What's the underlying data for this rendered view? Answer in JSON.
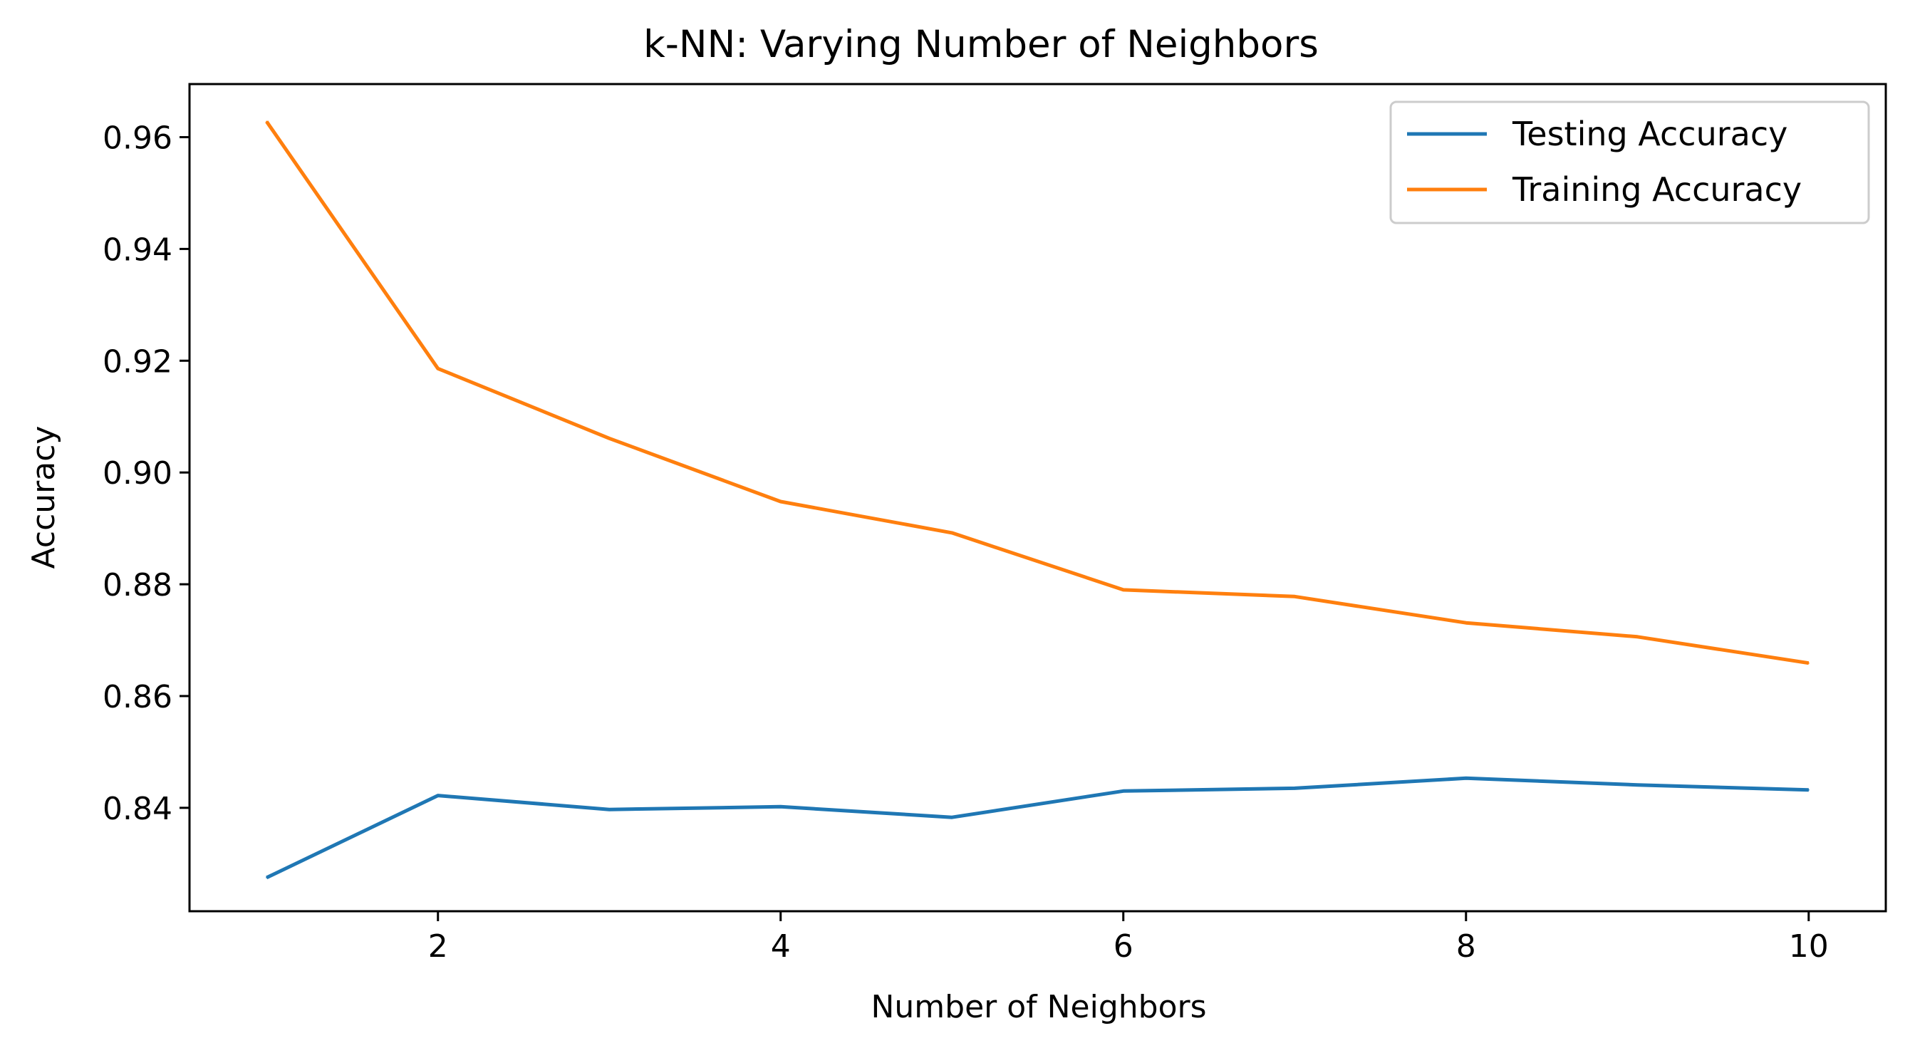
{
  "chart_data": {
    "type": "line",
    "title": "k-NN: Varying Number of Neighbors",
    "xlabel": "Number of Neighbors",
    "ylabel": "Accuracy",
    "x": [
      1,
      2,
      3,
      4,
      5,
      6,
      7,
      8,
      9,
      10
    ],
    "xlim": [
      0.55,
      10.45
    ],
    "ylim": [
      0.8215,
      0.9695
    ],
    "x_ticks": [
      "2",
      "4",
      "6",
      "8",
      "10"
    ],
    "y_ticks": [
      "0.84",
      "0.86",
      "0.88",
      "0.90",
      "0.92",
      "0.94",
      "0.96"
    ],
    "legend_position": "top-right",
    "grid": false,
    "series": [
      {
        "name": "Testing Accuracy",
        "color": "#1f77b4",
        "values": [
          0.8275,
          0.8422,
          0.8397,
          0.8402,
          0.8383,
          0.843,
          0.8435,
          0.8453,
          0.8441,
          0.8432
        ]
      },
      {
        "name": "Training Accuracy",
        "color": "#ff7f0e",
        "values": [
          0.9628,
          0.9186,
          0.9061,
          0.8948,
          0.8892,
          0.879,
          0.8778,
          0.8731,
          0.8706,
          0.8659
        ]
      }
    ]
  }
}
